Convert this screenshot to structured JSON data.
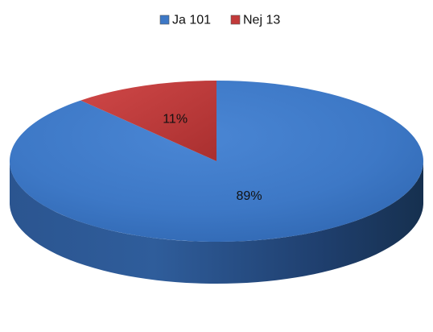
{
  "chart_data": {
    "type": "pie",
    "style": "3d",
    "legend_position": "top",
    "slices": [
      {
        "label": "Ja",
        "value": 101,
        "percent_label": "89%",
        "color": "#3d78c6"
      },
      {
        "label": "Nej",
        "value": 13,
        "percent_label": "11%",
        "color": "#c23a3a"
      }
    ],
    "legend": [
      {
        "label": "Ja 101",
        "color": "#3d78c6"
      },
      {
        "label": "Nej 13",
        "color": "#c23a3a"
      }
    ]
  }
}
